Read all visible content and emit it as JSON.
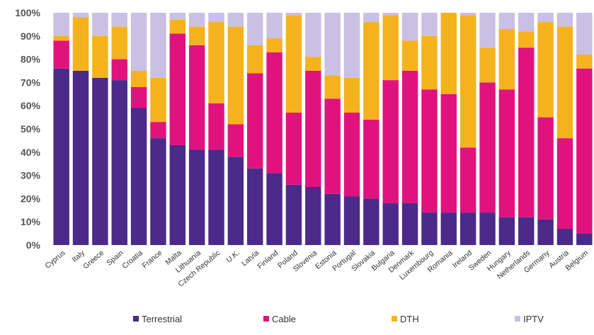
{
  "chart_data": {
    "type": "bar",
    "stacked": true,
    "title": "",
    "xlabel": "",
    "ylabel": "",
    "ylim": [
      0,
      100
    ],
    "y_ticks": [
      "0%",
      "10%",
      "20%",
      "30%",
      "40%",
      "50%",
      "60%",
      "70%",
      "80%",
      "90%",
      "100%"
    ],
    "grid": false,
    "legend_position": "bottom",
    "categories": [
      "Cyprus",
      "Italy",
      "Greece",
      "Spain",
      "Croatia",
      "France",
      "Malta",
      "Lithuania",
      "Czech Republic",
      "U.K.",
      "Latvia",
      "Finland",
      "Poland",
      "Slovenia",
      "Estonia",
      "Portugal",
      "Slovakia",
      "Bulgaria",
      "Denmark",
      "Luxembourg",
      "Romania",
      "Ireland",
      "Sweden",
      "Hungary",
      "Netherlands",
      "Germany",
      "Austria",
      "Belgium"
    ],
    "series": [
      {
        "name": "Terrestrial",
        "color": "#4b2a8a",
        "values": [
          76,
          75,
          72,
          71,
          59,
          46,
          43,
          41,
          41,
          38,
          33,
          31,
          26,
          25,
          22,
          21,
          20,
          18,
          18,
          14,
          14,
          14,
          14,
          12,
          12,
          11,
          7,
          5
        ]
      },
      {
        "name": "Cable",
        "color": "#e0137e",
        "values": [
          12,
          0,
          0,
          9,
          9,
          7,
          48,
          45,
          20,
          14,
          41,
          52,
          31,
          50,
          41,
          36,
          34,
          53,
          57,
          53,
          51,
          28,
          56,
          55,
          73,
          44,
          39,
          71
        ]
      },
      {
        "name": "DTH",
        "color": "#f5b21f",
        "values": [
          2,
          23,
          18,
          14,
          7,
          19,
          6,
          8,
          35,
          42,
          12,
          6,
          42,
          6,
          10,
          15,
          42,
          28,
          13,
          23,
          35,
          57,
          15,
          26,
          7,
          41,
          48,
          6
        ]
      },
      {
        "name": "IPTV",
        "color": "#c9c0e3",
        "values": [
          10,
          2,
          10,
          6,
          25,
          28,
          3,
          6,
          4,
          6,
          14,
          11,
          1,
          19,
          27,
          28,
          4,
          1,
          12,
          10,
          0,
          1,
          15,
          7,
          8,
          4,
          6,
          18
        ]
      }
    ]
  }
}
